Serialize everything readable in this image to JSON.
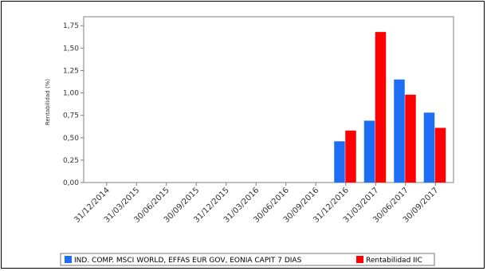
{
  "chart_data": {
    "type": "bar",
    "ylabel": "Rentabilidad (%)",
    "xlabel": "",
    "ylim": [
      0,
      1.85
    ],
    "yticks": [
      "0,00",
      "0,25",
      "0,50",
      "0,75",
      "1,00",
      "1,25",
      "1,50",
      "1,75"
    ],
    "categories": [
      "31/12/2014",
      "31/03/2015",
      "30/06/2015",
      "30/09/2015",
      "31/12/2015",
      "31/03/2016",
      "30/06/2016",
      "30/09/2016",
      "31/12/2016",
      "31/03/2017",
      "30/06/2017",
      "30/09/2017"
    ],
    "series": [
      {
        "name": "IND. COMP. MSCI WORLD, EFFAS EUR GOV, EONIA CAPIT 7 DIAS",
        "color": "#1e6ef5",
        "values": [
          null,
          null,
          null,
          null,
          null,
          null,
          null,
          null,
          0.46,
          0.69,
          1.15,
          0.78
        ]
      },
      {
        "name": "Rentabilidad IIC",
        "color": "#ff0000",
        "values": [
          null,
          null,
          null,
          null,
          null,
          null,
          null,
          null,
          0.58,
          1.68,
          0.98,
          0.61
        ]
      }
    ],
    "legend_position": "bottom",
    "grid": false
  }
}
